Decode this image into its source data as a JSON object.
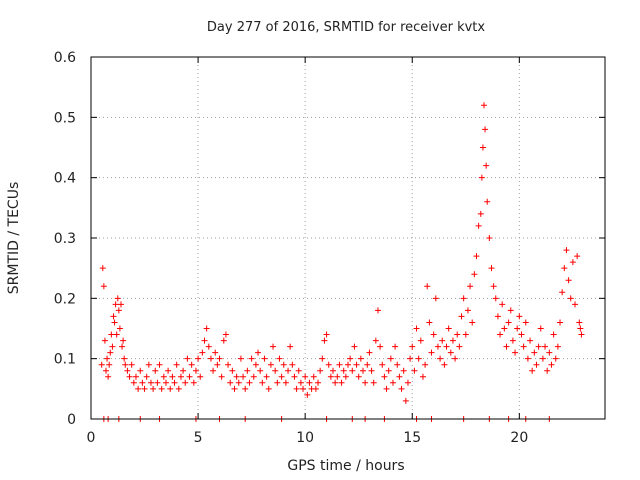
{
  "chart_data": {
    "type": "scatter",
    "title": "Day 277 of 2016, SRMTID for receiver kvtx",
    "xlabel": "GPS time / hours",
    "ylabel": "SRMTID / TECUs",
    "xlim": [
      0,
      24
    ],
    "ylim": [
      0,
      0.6
    ],
    "x_ticks": [
      0,
      5,
      10,
      15,
      20
    ],
    "y_ticks": [
      0,
      0.1,
      0.2,
      0.3,
      0.4,
      0.5,
      0.6
    ],
    "x_tick_labels": [
      "0",
      "5",
      "10",
      "15",
      "20"
    ],
    "y_tick_labels": [
      "0",
      "0.1",
      "0.2",
      "0.3",
      "0.4",
      "0.5",
      "0.6"
    ],
    "grid": true,
    "marker": "+",
    "color": "#ff0000",
    "series": [
      {
        "name": "SRMTID",
        "points": [
          [
            0.5,
            0.09
          ],
          [
            0.55,
            0.25
          ],
          [
            0.6,
            0.22
          ],
          [
            0.65,
            0.13
          ],
          [
            0.7,
            0.08
          ],
          [
            0.75,
            0.1
          ],
          [
            0.8,
            0.07
          ],
          [
            0.85,
            0.09
          ],
          [
            0.9,
            0.11
          ],
          [
            0.95,
            0.14
          ],
          [
            1.0,
            0.12
          ],
          [
            1.05,
            0.17
          ],
          [
            1.1,
            0.16
          ],
          [
            1.15,
            0.19
          ],
          [
            1.2,
            0.14
          ],
          [
            1.25,
            0.2
          ],
          [
            1.3,
            0.18
          ],
          [
            1.35,
            0.15
          ],
          [
            1.4,
            0.19
          ],
          [
            1.45,
            0.12
          ],
          [
            1.5,
            0.13
          ],
          [
            1.55,
            0.1
          ],
          [
            1.6,
            0.09
          ],
          [
            1.7,
            0.08
          ],
          [
            1.8,
            0.07
          ],
          [
            1.9,
            0.09
          ],
          [
            2.0,
            0.06
          ],
          [
            2.1,
            0.07
          ],
          [
            2.2,
            0.05
          ],
          [
            2.3,
            0.08
          ],
          [
            2.4,
            0.06
          ],
          [
            2.5,
            0.05
          ],
          [
            2.6,
            0.07
          ],
          [
            2.7,
            0.09
          ],
          [
            2.8,
            0.06
          ],
          [
            2.9,
            0.05
          ],
          [
            3.0,
            0.08
          ],
          [
            3.1,
            0.06
          ],
          [
            3.2,
            0.09
          ],
          [
            3.3,
            0.05
          ],
          [
            3.4,
            0.07
          ],
          [
            3.5,
            0.06
          ],
          [
            3.6,
            0.08
          ],
          [
            3.7,
            0.05
          ],
          [
            3.8,
            0.07
          ],
          [
            3.9,
            0.06
          ],
          [
            4.0,
            0.09
          ],
          [
            4.1,
            0.05
          ],
          [
            4.2,
            0.07
          ],
          [
            4.3,
            0.08
          ],
          [
            4.4,
            0.06
          ],
          [
            4.5,
            0.1
          ],
          [
            4.6,
            0.07
          ],
          [
            4.7,
            0.09
          ],
          [
            4.8,
            0.06
          ],
          [
            4.9,
            0.08
          ],
          [
            5.0,
            0.1
          ],
          [
            5.1,
            0.07
          ],
          [
            5.2,
            0.11
          ],
          [
            5.3,
            0.13
          ],
          [
            5.4,
            0.15
          ],
          [
            5.5,
            0.12
          ],
          [
            5.6,
            0.1
          ],
          [
            5.7,
            0.08
          ],
          [
            5.8,
            0.11
          ],
          [
            5.9,
            0.09
          ],
          [
            6.0,
            0.1
          ],
          [
            6.1,
            0.07
          ],
          [
            6.2,
            0.13
          ],
          [
            6.3,
            0.14
          ],
          [
            6.4,
            0.09
          ],
          [
            6.5,
            0.06
          ],
          [
            6.6,
            0.08
          ],
          [
            6.7,
            0.05
          ],
          [
            6.8,
            0.07
          ],
          [
            6.9,
            0.06
          ],
          [
            7.0,
            0.1
          ],
          [
            7.1,
            0.07
          ],
          [
            7.2,
            0.05
          ],
          [
            7.3,
            0.08
          ],
          [
            7.4,
            0.06
          ],
          [
            7.5,
            0.1
          ],
          [
            7.6,
            0.07
          ],
          [
            7.7,
            0.09
          ],
          [
            7.8,
            0.11
          ],
          [
            7.9,
            0.08
          ],
          [
            8.0,
            0.06
          ],
          [
            8.1,
            0.1
          ],
          [
            8.2,
            0.07
          ],
          [
            8.3,
            0.05
          ],
          [
            8.4,
            0.09
          ],
          [
            8.5,
            0.12
          ],
          [
            8.6,
            0.08
          ],
          [
            8.7,
            0.06
          ],
          [
            8.8,
            0.1
          ],
          [
            8.9,
            0.07
          ],
          [
            9.0,
            0.09
          ],
          [
            9.1,
            0.06
          ],
          [
            9.2,
            0.08
          ],
          [
            9.3,
            0.12
          ],
          [
            9.4,
            0.09
          ],
          [
            9.5,
            0.07
          ],
          [
            9.6,
            0.05
          ],
          [
            9.7,
            0.08
          ],
          [
            9.8,
            0.06
          ],
          [
            9.9,
            0.05
          ],
          [
            10.0,
            0.07
          ],
          [
            10.1,
            0.04
          ],
          [
            10.2,
            0.06
          ],
          [
            10.3,
            0.05
          ],
          [
            10.4,
            0.07
          ],
          [
            10.5,
            0.05
          ],
          [
            10.6,
            0.06
          ],
          [
            10.7,
            0.08
          ],
          [
            10.8,
            0.1
          ],
          [
            10.9,
            0.13
          ],
          [
            11.0,
            0.14
          ],
          [
            11.1,
            0.09
          ],
          [
            11.2,
            0.07
          ],
          [
            11.3,
            0.08
          ],
          [
            11.4,
            0.06
          ],
          [
            11.5,
            0.07
          ],
          [
            11.6,
            0.09
          ],
          [
            11.7,
            0.06
          ],
          [
            11.8,
            0.08
          ],
          [
            11.9,
            0.07
          ],
          [
            12.0,
            0.09
          ],
          [
            12.1,
            0.1
          ],
          [
            12.2,
            0.08
          ],
          [
            12.3,
            0.12
          ],
          [
            12.4,
            0.09
          ],
          [
            12.5,
            0.07
          ],
          [
            12.6,
            0.1
          ],
          [
            12.7,
            0.08
          ],
          [
            12.8,
            0.06
          ],
          [
            12.9,
            0.09
          ],
          [
            13.0,
            0.11
          ],
          [
            13.1,
            0.08
          ],
          [
            13.2,
            0.06
          ],
          [
            13.3,
            0.13
          ],
          [
            13.4,
            0.18
          ],
          [
            13.5,
            0.12
          ],
          [
            13.6,
            0.09
          ],
          [
            13.7,
            0.07
          ],
          [
            13.8,
            0.05
          ],
          [
            13.9,
            0.08
          ],
          [
            14.0,
            0.1
          ],
          [
            14.1,
            0.06
          ],
          [
            14.2,
            0.12
          ],
          [
            14.3,
            0.09
          ],
          [
            14.4,
            0.07
          ],
          [
            14.5,
            0.05
          ],
          [
            14.6,
            0.08
          ],
          [
            14.7,
            0.03
          ],
          [
            14.8,
            0.06
          ],
          [
            14.9,
            0.1
          ],
          [
            15.0,
            0.12
          ],
          [
            15.1,
            0.08
          ],
          [
            15.2,
            0.15
          ],
          [
            15.3,
            0.1
          ],
          [
            15.4,
            0.13
          ],
          [
            15.5,
            0.07
          ],
          [
            15.6,
            0.09
          ],
          [
            15.7,
            0.22
          ],
          [
            15.8,
            0.16
          ],
          [
            15.9,
            0.11
          ],
          [
            16.0,
            0.14
          ],
          [
            16.1,
            0.2
          ],
          [
            16.2,
            0.12
          ],
          [
            16.3,
            0.1
          ],
          [
            16.4,
            0.13
          ],
          [
            16.5,
            0.09
          ],
          [
            16.6,
            0.12
          ],
          [
            16.7,
            0.15
          ],
          [
            16.8,
            0.11
          ],
          [
            16.9,
            0.13
          ],
          [
            17.0,
            0.1
          ],
          [
            17.1,
            0.14
          ],
          [
            17.2,
            0.12
          ],
          [
            17.3,
            0.17
          ],
          [
            17.4,
            0.2
          ],
          [
            17.5,
            0.14
          ],
          [
            17.6,
            0.18
          ],
          [
            17.7,
            0.22
          ],
          [
            17.8,
            0.16
          ],
          [
            17.9,
            0.24
          ],
          [
            18.0,
            0.27
          ],
          [
            18.1,
            0.32
          ],
          [
            18.2,
            0.34
          ],
          [
            18.25,
            0.4
          ],
          [
            18.3,
            0.45
          ],
          [
            18.35,
            0.52
          ],
          [
            18.4,
            0.48
          ],
          [
            18.45,
            0.42
          ],
          [
            18.5,
            0.36
          ],
          [
            18.6,
            0.3
          ],
          [
            18.7,
            0.25
          ],
          [
            18.8,
            0.22
          ],
          [
            18.9,
            0.2
          ],
          [
            19.0,
            0.17
          ],
          [
            19.1,
            0.14
          ],
          [
            19.2,
            0.19
          ],
          [
            19.3,
            0.15
          ],
          [
            19.4,
            0.12
          ],
          [
            19.5,
            0.16
          ],
          [
            19.6,
            0.18
          ],
          [
            19.7,
            0.13
          ],
          [
            19.8,
            0.11
          ],
          [
            19.9,
            0.15
          ],
          [
            20.0,
            0.17
          ],
          [
            20.1,
            0.14
          ],
          [
            20.2,
            0.12
          ],
          [
            20.3,
            0.16
          ],
          [
            20.4,
            0.1
          ],
          [
            20.5,
            0.13
          ],
          [
            20.6,
            0.08
          ],
          [
            20.7,
            0.11
          ],
          [
            20.8,
            0.09
          ],
          [
            20.9,
            0.12
          ],
          [
            21.0,
            0.15
          ],
          [
            21.1,
            0.1
          ],
          [
            21.2,
            0.12
          ],
          [
            21.3,
            0.08
          ],
          [
            21.4,
            0.11
          ],
          [
            21.5,
            0.09
          ],
          [
            21.6,
            0.14
          ],
          [
            21.7,
            0.1
          ],
          [
            21.8,
            0.12
          ],
          [
            21.9,
            0.16
          ],
          [
            22.0,
            0.21
          ],
          [
            22.1,
            0.25
          ],
          [
            22.2,
            0.28
          ],
          [
            22.3,
            0.23
          ],
          [
            22.4,
            0.2
          ],
          [
            22.5,
            0.26
          ],
          [
            22.6,
            0.19
          ],
          [
            22.7,
            0.27
          ],
          [
            22.8,
            0.16
          ],
          [
            22.85,
            0.15
          ],
          [
            22.9,
            0.14
          ],
          [
            0.6,
            0.0
          ],
          [
            0.8,
            0.0
          ],
          [
            1.3,
            0.0
          ],
          [
            2.3,
            0.0
          ],
          [
            3.2,
            0.0
          ],
          [
            4.9,
            0.0
          ],
          [
            6.0,
            0.0
          ],
          [
            7.2,
            0.0
          ],
          [
            8.9,
            0.0
          ],
          [
            11.0,
            0.0
          ],
          [
            12.2,
            0.0
          ],
          [
            12.8,
            0.0
          ],
          [
            13.7,
            0.0
          ],
          [
            15.2,
            0.0
          ],
          [
            15.9,
            0.0
          ],
          [
            17.4,
            0.0
          ],
          [
            18.6,
            0.0
          ],
          [
            19.5,
            0.0
          ],
          [
            20.3,
            0.0
          ],
          [
            21.4,
            0.0
          ]
        ]
      }
    ]
  }
}
